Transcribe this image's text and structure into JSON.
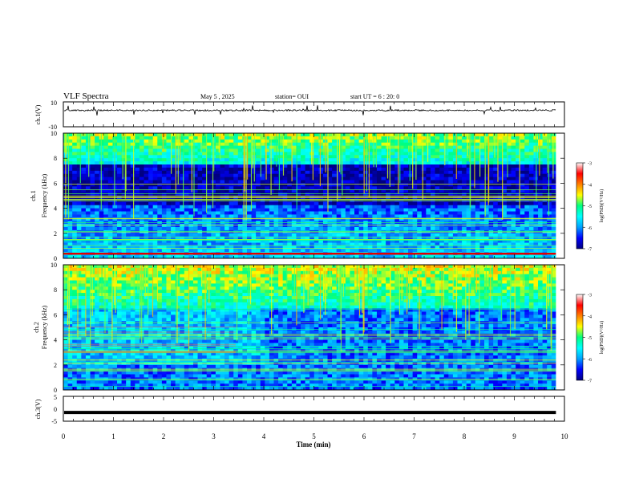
{
  "header": {
    "title": "VLF Spectra",
    "date": "May 5 , 2025",
    "station": "station= OUI",
    "start": "start UT = 6 : 20: 0"
  },
  "chart_data": [
    {
      "type": "line",
      "panel": "ch1-waveform",
      "ylabel": "ch.1(V)",
      "ylim": [
        -10,
        10
      ],
      "yticks": [
        "10",
        "-10"
      ],
      "baseline": 3.2,
      "noise_amplitude": 0.6,
      "x_range": [
        0,
        9.83
      ]
    },
    {
      "type": "heatmap",
      "panel": "ch1-spectrogram",
      "ylabel": "ch.1\nFrequency (kHz)",
      "ylim": [
        0,
        10
      ],
      "yticks": [
        "0",
        "2",
        "4",
        "6",
        "8",
        "10"
      ],
      "colorbar": {
        "label": "log(PSD)(V²/Hz)",
        "range": [
          -7,
          -3
        ],
        "ticks": [
          "-3",
          "-4",
          "-5",
          "-6",
          "-7"
        ]
      },
      "x_range": [
        0,
        9.83
      ]
    },
    {
      "type": "heatmap",
      "panel": "ch2-spectrogram",
      "ylabel": "ch.2\nFrequency (kHz)",
      "ylim": [
        0,
        10
      ],
      "yticks": [
        "0",
        "2",
        "4",
        "6",
        "8",
        "10"
      ],
      "colorbar": {
        "label": "log(PSD)(V²/Hz)",
        "range": [
          -7,
          -3
        ],
        "ticks": [
          "-3",
          "-4",
          "-5",
          "-6",
          "-7"
        ]
      },
      "x_range": [
        0,
        9.83
      ]
    },
    {
      "type": "line",
      "panel": "ch3-waveform",
      "ylabel": "ch.3(V)",
      "ylim": [
        -5,
        5
      ],
      "yticks": [
        "5",
        "0",
        "-5"
      ],
      "baseline": -1.5,
      "x_range": [
        0,
        9.83
      ]
    }
  ],
  "xaxis": {
    "label": "Time (min)",
    "range": [
      0,
      10
    ],
    "ticks": [
      "0",
      "1",
      "2",
      "3",
      "4",
      "5",
      "6",
      "7",
      "8",
      "9",
      "10"
    ]
  },
  "colors": {
    "colormap": [
      "#000080",
      "#0000ff",
      "#00a0ff",
      "#00ffff",
      "#00ff80",
      "#ffff00",
      "#ff8000",
      "#ff0000",
      "#ffffff"
    ]
  }
}
